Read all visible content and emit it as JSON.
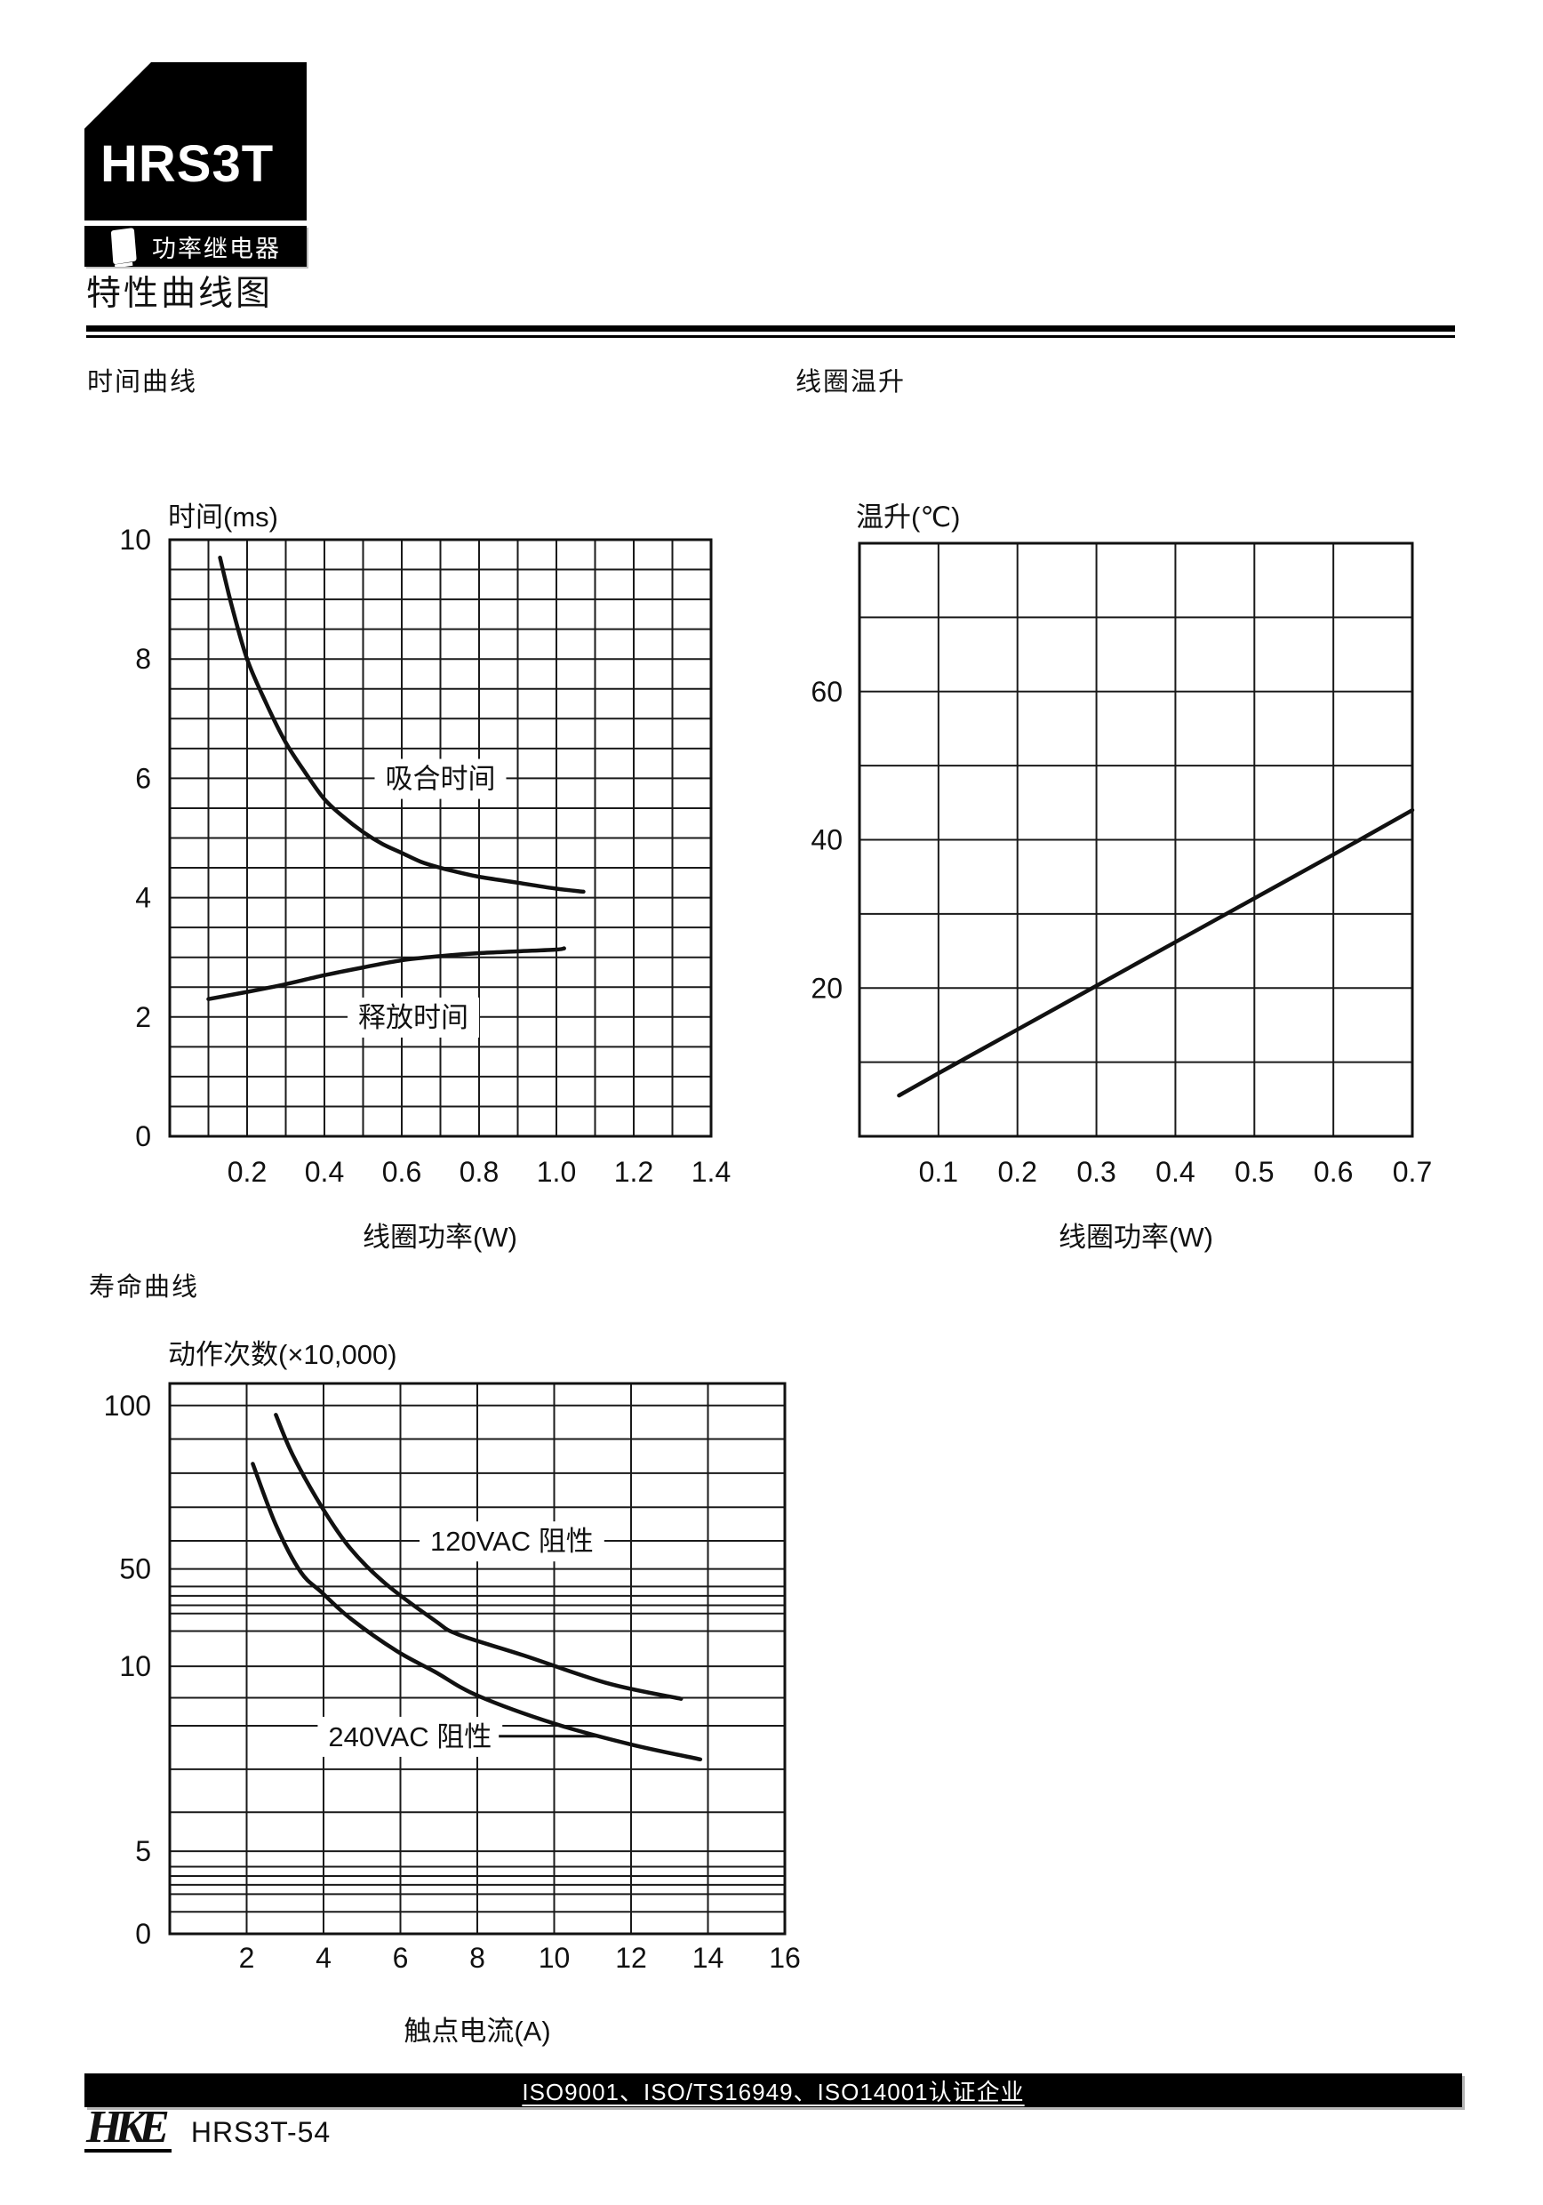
{
  "colors": {
    "ink": "#111111",
    "grid": "#1a1a1a",
    "bar_bg": "#000000",
    "bar_fg": "#ffffff",
    "paper": "#ffffff",
    "shadow": "#b5b5b5"
  },
  "header": {
    "logo_text": "HRS3T",
    "logo_sub": "功率继电器",
    "title": "特性曲线图"
  },
  "sections": {
    "time": "时间曲线",
    "temp": "线圈温升",
    "life": "寿命曲线"
  },
  "footer": {
    "iso_text": "ISO9001、ISO/TS16949、ISO14001认证企业",
    "brand": "HKE",
    "page_code": "HRS3T-54"
  },
  "chart_data": [
    {
      "id": "time_curve",
      "type": "line",
      "title": "时间(ms)",
      "xlabel": "线圈功率(W)",
      "x_axis": {
        "range": [
          0,
          1.4
        ],
        "grid_step": 0.1,
        "ticks": [
          {
            "label": "0.2",
            "v": 0.2
          },
          {
            "label": "0.4",
            "v": 0.4
          },
          {
            "label": "0.6",
            "v": 0.6
          },
          {
            "label": "0.8",
            "v": 0.8
          },
          {
            "label": "1.0",
            "v": 1.0
          },
          {
            "label": "1.2",
            "v": 1.2
          },
          {
            "label": "1.4",
            "v": 1.4
          }
        ]
      },
      "y_axis": {
        "type": "linear",
        "range": [
          0,
          10
        ],
        "grid_step": 0.5,
        "ticks": [
          {
            "label": "0",
            "v": 0
          },
          {
            "label": "2",
            "v": 2
          },
          {
            "label": "4",
            "v": 4
          },
          {
            "label": "6",
            "v": 6
          },
          {
            "label": "8",
            "v": 8
          },
          {
            "label": "10",
            "v": 10
          }
        ]
      },
      "series": [
        {
          "name": "吸合时间",
          "label_at": [
            0.7,
            6.0
          ],
          "points": [
            [
              0.13,
              9.7
            ],
            [
              0.16,
              8.9
            ],
            [
              0.2,
              8.0
            ],
            [
              0.25,
              7.25
            ],
            [
              0.3,
              6.6
            ],
            [
              0.35,
              6.1
            ],
            [
              0.4,
              5.65
            ],
            [
              0.45,
              5.35
            ],
            [
              0.5,
              5.1
            ],
            [
              0.55,
              4.9
            ],
            [
              0.6,
              4.75
            ],
            [
              0.65,
              4.6
            ],
            [
              0.7,
              4.5
            ],
            [
              0.75,
              4.42
            ],
            [
              0.8,
              4.35
            ],
            [
              0.9,
              4.25
            ],
            [
              1.0,
              4.15
            ],
            [
              1.07,
              4.1
            ]
          ]
        },
        {
          "name": "释放时间",
          "label_at": [
            0.63,
            2.0
          ],
          "points": [
            [
              0.1,
              2.3
            ],
            [
              0.2,
              2.42
            ],
            [
              0.3,
              2.55
            ],
            [
              0.4,
              2.7
            ],
            [
              0.5,
              2.83
            ],
            [
              0.6,
              2.95
            ],
            [
              0.7,
              3.02
            ],
            [
              0.8,
              3.07
            ],
            [
              0.9,
              3.1
            ],
            [
              1.0,
              3.13
            ],
            [
              1.02,
              3.15
            ]
          ]
        }
      ]
    },
    {
      "id": "coil_temp_rise",
      "type": "line",
      "title": "温升(℃)",
      "xlabel": "线圈功率(W)",
      "x_axis": {
        "range": [
          0,
          0.7
        ],
        "grid_step": 0.1,
        "ticks": [
          {
            "label": "0.1",
            "v": 0.1
          },
          {
            "label": "0.2",
            "v": 0.2
          },
          {
            "label": "0.3",
            "v": 0.3
          },
          {
            "label": "0.4",
            "v": 0.4
          },
          {
            "label": "0.5",
            "v": 0.5
          },
          {
            "label": "0.6",
            "v": 0.6
          },
          {
            "label": "0.7",
            "v": 0.7
          }
        ]
      },
      "y_axis": {
        "type": "linear",
        "range": [
          0,
          80
        ],
        "grid_step": 10,
        "ticks": [
          {
            "label": "20",
            "v": 20
          },
          {
            "label": "40",
            "v": 40
          },
          {
            "label": "60",
            "v": 60
          }
        ]
      },
      "series": [
        {
          "name": "温升",
          "points": [
            [
              0.05,
              5.5
            ],
            [
              0.1,
              8.5
            ],
            [
              0.2,
              14.4
            ],
            [
              0.3,
              20.3
            ],
            [
              0.4,
              26.2
            ],
            [
              0.5,
              32.1
            ],
            [
              0.6,
              38.0
            ],
            [
              0.7,
              44.0
            ]
          ]
        }
      ]
    },
    {
      "id": "life_curve",
      "type": "line",
      "title": "动作次数(×10,000)",
      "xlabel": "触点电流(A)",
      "x_axis": {
        "range": [
          0,
          16
        ],
        "grid_step": 2,
        "ticks": [
          {
            "label": "2",
            "v": 2
          },
          {
            "label": "4",
            "v": 4
          },
          {
            "label": "6",
            "v": 6
          },
          {
            "label": "8",
            "v": 8
          },
          {
            "label": "10",
            "v": 10
          },
          {
            "label": "12",
            "v": 12
          },
          {
            "label": "14",
            "v": 14
          },
          {
            "label": "16",
            "v": 16
          }
        ]
      },
      "y_axis": {
        "type": "pseudo_log",
        "ticks": [
          {
            "label": "100",
            "f": 0.04
          },
          {
            "label": "50",
            "f": 0.337
          },
          {
            "label": "10",
            "f": 0.514
          },
          {
            "label": "5",
            "f": 0.85
          },
          {
            "label": "0",
            "f": 1.0
          }
        ],
        "gridlines_f": [
          0.04,
          0.101,
          0.163,
          0.225,
          0.286,
          0.337,
          0.369,
          0.386,
          0.403,
          0.418,
          0.45,
          0.514,
          0.571,
          0.622,
          0.701,
          0.779,
          0.85,
          0.878,
          0.895,
          0.911,
          0.928,
          0.96
        ]
      },
      "series": [
        {
          "name": "120VAC 阻性",
          "label_at_f": [
            8.9,
            0.286
          ],
          "points_f": [
            [
              2.76,
              0.057
            ],
            [
              3.2,
              0.13
            ],
            [
              3.96,
              0.225
            ],
            [
              4.7,
              0.3
            ],
            [
              5.6,
              0.363
            ],
            [
              6.9,
              0.431
            ],
            [
              7.5,
              0.456
            ],
            [
              9.2,
              0.494
            ],
            [
              11.4,
              0.545
            ],
            [
              13.3,
              0.573
            ]
          ],
          "points_value": [
            [
              2.8,
              97
            ],
            [
              3.2,
              85
            ],
            [
              4,
              70
            ],
            [
              4.7,
              57
            ],
            [
              5.6,
              44
            ],
            [
              6.9,
              22
            ],
            [
              7.5,
              19
            ],
            [
              9.2,
              13
            ],
            [
              11.4,
              9.5
            ],
            [
              13.3,
              8.8
            ]
          ]
        },
        {
          "name": "240VAC 阻性",
          "label_at_f": [
            6.25,
            0.641
          ],
          "leader_to_x": 11.1,
          "points_f": [
            [
              2.16,
              0.146
            ],
            [
              2.76,
              0.257
            ],
            [
              3.4,
              0.342
            ],
            [
              3.96,
              0.38
            ],
            [
              4.7,
              0.427
            ],
            [
              5.9,
              0.486
            ],
            [
              6.9,
              0.524
            ],
            [
              8.0,
              0.567
            ],
            [
              10.0,
              0.618
            ],
            [
              12.0,
              0.656
            ],
            [
              13.8,
              0.683
            ]
          ],
          "points_value": [
            [
              2.2,
              83
            ],
            [
              2.8,
              65
            ],
            [
              3.4,
              49
            ],
            [
              4,
              36
            ],
            [
              4.7,
              24
            ],
            [
              5.9,
              15
            ],
            [
              6.9,
              9.8
            ],
            [
              8,
              9
            ],
            [
              10,
              8
            ],
            [
              12,
              7.3
            ],
            [
              13.8,
              7
            ]
          ]
        }
      ]
    }
  ]
}
